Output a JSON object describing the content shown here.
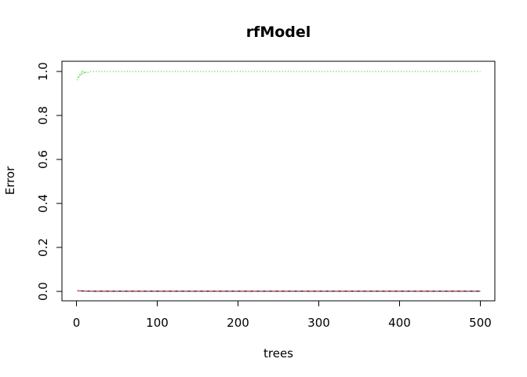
{
  "chart_data": {
    "type": "line",
    "title": "rfModel",
    "xlabel": "trees",
    "ylabel": "Error",
    "xlim": [
      0,
      500
    ],
    "ylim": [
      0,
      1
    ],
    "x_ticks": [
      "0",
      "100",
      "200",
      "300",
      "400",
      "500"
    ],
    "y_ticks": [
      "0.0",
      "0.2",
      "0.4",
      "0.6",
      "0.8",
      "1.0"
    ],
    "grid": false,
    "legend": "none",
    "series": [
      {
        "color": "#000000",
        "dash": "solid",
        "x": [
          1,
          3,
          5,
          8,
          12,
          20,
          40,
          100,
          200,
          300,
          400,
          500
        ],
        "y": [
          0.003,
          0.0025,
          0.002,
          0.0018,
          0.0015,
          0.001,
          0.0008,
          0.0008,
          0.0008,
          0.0008,
          0.0008,
          0.0008
        ]
      },
      {
        "color": "#DF536B",
        "dash": "dashed",
        "x": [
          1,
          3,
          5,
          8,
          12,
          20,
          40,
          100,
          200,
          300,
          400,
          500
        ],
        "y": [
          0.002,
          0.0018,
          0.0015,
          0.0012,
          0.001,
          0.0008,
          0.0007,
          0.0007,
          0.0007,
          0.0007,
          0.0007,
          0.0007
        ]
      },
      {
        "color": "#61D04F",
        "dash": "dotted",
        "x": [
          1,
          2,
          3,
          4,
          5,
          6,
          7,
          8,
          9,
          10,
          11,
          12,
          14,
          16,
          20,
          30,
          50,
          100,
          200,
          300,
          400,
          500
        ],
        "y": [
          0.96,
          0.98,
          0.97,
          0.99,
          0.98,
          1.0,
          0.99,
          1.0,
          0.99,
          1.0,
          0.99,
          1.0,
          0.995,
          1.0,
          1.0,
          1.0,
          1.0,
          1.0,
          1.0,
          1.0,
          1.0,
          1.0
        ]
      }
    ]
  }
}
